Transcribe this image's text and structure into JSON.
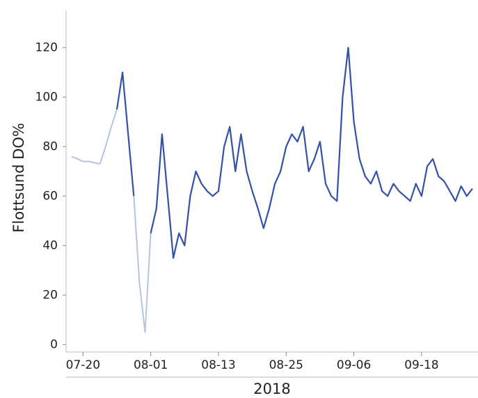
{
  "chart_data": {
    "type": "line",
    "y_label": "Flottsund DO%",
    "x_label": "2018",
    "x": [
      "2018-07-18",
      "2018-07-19",
      "2018-07-20",
      "2018-07-21",
      "2018-07-22",
      "2018-07-23",
      "2018-07-24",
      "2018-07-25",
      "2018-07-26",
      "2018-07-27",
      "2018-07-28",
      "2018-07-29",
      "2018-07-30",
      "2018-07-31",
      "2018-08-01",
      "2018-08-02",
      "2018-08-03",
      "2018-08-04",
      "2018-08-05",
      "2018-08-06",
      "2018-08-07",
      "2018-08-08",
      "2018-08-09",
      "2018-08-10",
      "2018-08-11",
      "2018-08-12",
      "2018-08-13",
      "2018-08-14",
      "2018-08-15",
      "2018-08-16",
      "2018-08-17",
      "2018-08-18",
      "2018-08-19",
      "2018-08-20",
      "2018-08-21",
      "2018-08-22",
      "2018-08-23",
      "2018-08-24",
      "2018-08-25",
      "2018-08-26",
      "2018-08-27",
      "2018-08-28",
      "2018-08-29",
      "2018-08-30",
      "2018-08-31",
      "2018-09-01",
      "2018-09-02",
      "2018-09-03",
      "2018-09-04",
      "2018-09-05",
      "2018-09-06",
      "2018-09-07",
      "2018-09-08",
      "2018-09-09",
      "2018-09-10",
      "2018-09-11",
      "2018-09-12",
      "2018-09-13",
      "2018-09-14",
      "2018-09-15",
      "2018-09-16",
      "2018-09-17",
      "2018-09-18",
      "2018-09-19",
      "2018-09-20",
      "2018-09-21",
      "2018-09-22",
      "2018-09-23",
      "2018-09-24",
      "2018-09-25",
      "2018-09-26",
      "2018-09-27"
    ],
    "series": [
      {
        "color": "#b7c3db",
        "values": [
          76,
          75,
          74,
          74,
          73.5,
          73,
          80,
          88,
          95,
          110,
          85,
          60,
          25,
          5,
          45,
          55,
          85,
          60,
          35,
          45,
          40,
          60,
          70,
          65,
          62,
          60,
          62,
          80,
          88,
          70,
          85,
          70,
          62,
          55,
          47,
          55,
          65,
          70,
          80,
          85,
          82,
          88,
          70,
          75,
          82,
          65,
          60,
          58,
          100,
          120,
          90,
          75,
          68,
          65,
          70,
          62,
          60,
          65,
          62,
          60,
          58,
          65,
          60,
          72,
          75,
          68,
          66,
          62,
          58,
          64,
          60,
          63
        ]
      },
      {
        "color": "#3552a6",
        "values": [
          null,
          null,
          null,
          null,
          null,
          null,
          null,
          null,
          95,
          110,
          85,
          60,
          null,
          null,
          45,
          55,
          85,
          60,
          35,
          45,
          40,
          60,
          70,
          65,
          62,
          60,
          62,
          80,
          88,
          70,
          85,
          70,
          62,
          55,
          47,
          55,
          65,
          70,
          80,
          85,
          82,
          88,
          70,
          75,
          82,
          65,
          60,
          58,
          100,
          120,
          90,
          75,
          68,
          65,
          70,
          62,
          60,
          65,
          62,
          60,
          58,
          65,
          60,
          72,
          75,
          68,
          66,
          62,
          58,
          64,
          60,
          63
        ]
      }
    ],
    "xlim": [
      "2018-07-17",
      "2018-09-28"
    ],
    "xticks": [
      {
        "value": "2018-07-20",
        "label": "07-20"
      },
      {
        "value": "2018-08-01",
        "label": "08-01"
      },
      {
        "value": "2018-08-13",
        "label": "08-13"
      },
      {
        "value": "2018-08-25",
        "label": "08-25"
      },
      {
        "value": "2018-09-06",
        "label": "09-06"
      },
      {
        "value": "2018-09-18",
        "label": "09-18"
      }
    ],
    "ylim": [
      -3,
      135
    ],
    "yticks": [
      0,
      20,
      40,
      60,
      80,
      100,
      120
    ]
  }
}
